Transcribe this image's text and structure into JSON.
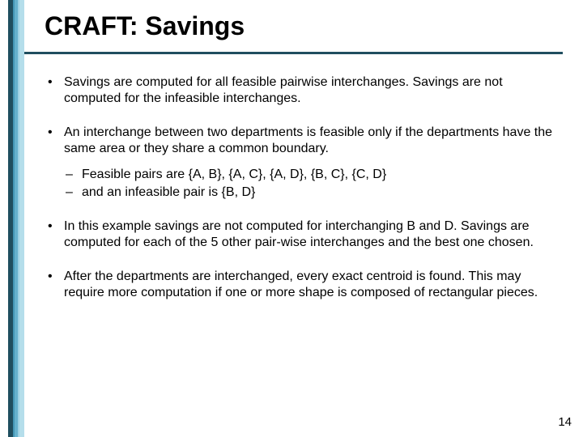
{
  "accent_colors": {
    "stripe1": "#1f4e5f",
    "stripe2": "#4aa3c4",
    "stripe3": "#a8d8e8",
    "rule": "#1f4e5f"
  },
  "title": "CRAFT: Savings",
  "bullets": [
    {
      "text": "Savings are computed for all feasible pairwise interchanges. Savings are not computed for the infeasible interchanges."
    },
    {
      "text": "An interchange between two departments is feasible only if the departments have the same area or they share a common boundary.",
      "sub": [
        "Feasible pairs are {A, B}, {A, C}, {A, D}, {B, C}, {C, D}",
        "and an infeasible pair is {B, D}"
      ]
    },
    {
      "text": "In this example savings are not computed for interchanging B and D. Savings are computed for each of the 5 other pair-wise interchanges and the best one chosen."
    },
    {
      "text": "After the departments are interchanged, every exact centroid is found. This may require more computation if one or more shape is composed of rectangular pieces."
    }
  ],
  "page_number": "14"
}
